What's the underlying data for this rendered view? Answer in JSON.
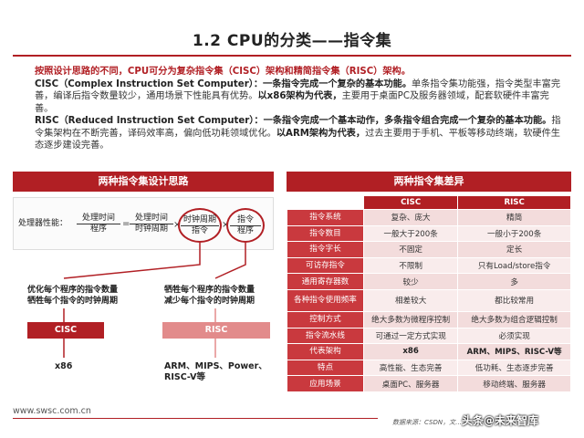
{
  "title": "1.2 CPU的分类——指令集",
  "intro": {
    "line1": "按照设计思路的不同，CPU可分为复杂指令集（CISC）架构和精简指令集（RISC）架构。",
    "cisc_term": "CISC（Complex Instruction Set Computer）：",
    "cisc_def": "一条指令完成一个复杂的基本功能。",
    "cisc_body": "单条指令集功能强，指令类型丰富完善，编译后指令数量较少，通用场景下性能具有优势。",
    "cisc_rep": "以x86架构为代表，",
    "cisc_tail": "主要用于桌面PC及服务器领域，配套软硬件丰富完善。",
    "risc_term": "RISC（Reduced Instruction Set Computer）：",
    "risc_def": "一条指令完成一个基本动作，多条指令组合完成一个复杂的基本功能。",
    "risc_body": "指令集架构在不断完善，译码效率高，偏向低功耗领域优化。",
    "risc_rep": "以ARM架构为代表，",
    "risc_tail": "过去主要用于手机、平板等移动终端，软硬件生态逐步建设完善。"
  },
  "left_panel": {
    "header": "两种指令集设计思路",
    "formula": {
      "lhs": "处理器性能：",
      "frac1_num": "处理时间",
      "frac1_den": "程序",
      "eq": "=",
      "frac2_num": "处理时间",
      "frac2_den": "时钟周期",
      "times1": "×",
      "frac3_num": "时钟周期",
      "frac3_den": "指令",
      "times2": "×",
      "frac4_num": "指令",
      "frac4_den": "程序"
    },
    "cisc_note_1": "优化每个程序的指令数量",
    "cisc_note_2": "牺牲每个指令的时钟周期",
    "risc_note_1": "牺牲每个程序的指令数量",
    "risc_note_2": "减少每个指令的时钟周期",
    "cisc_tag": "CISC",
    "risc_tag": "RISC",
    "cisc_ex": "x86",
    "risc_ex_1": "ARM、MIPS、Power、",
    "risc_ex_2": "RISC-V等"
  },
  "right_panel": {
    "header": "两种指令集差异",
    "col_cisc": "CISC",
    "col_risc": "RISC",
    "rows": [
      {
        "label": "指令系统",
        "cisc": "复杂、庞大",
        "risc": "精简"
      },
      {
        "label": "指令数目",
        "cisc": "一般大于200条",
        "risc": "一般小于200条"
      },
      {
        "label": "指令字长",
        "cisc": "不固定",
        "risc": "定长"
      },
      {
        "label": "可访存指令",
        "cisc": "不限制",
        "risc": "只有Load/store指令"
      },
      {
        "label": "通用寄存器数",
        "cisc": "较少",
        "risc": "多"
      },
      {
        "label": "各种指令使用频率",
        "cisc": "相差较大",
        "risc": "都比较常用"
      },
      {
        "label": "控制方式",
        "cisc": "绝大多数为微程序控制",
        "risc": "绝大多数为组合逻辑控制"
      },
      {
        "label": "指令流水线",
        "cisc": "可通过一定方式实现",
        "risc": "必须实现"
      },
      {
        "label": "代表架构",
        "cisc": "x86",
        "risc": "ARM、MIPS、RISC-V等"
      },
      {
        "label": "特点",
        "cisc": "高性能、生态完善",
        "risc": "低功耗、生态逐步完善"
      },
      {
        "label": "应用场景",
        "cisc": "桌面PC、服务器",
        "risc": "移动终端、服务器"
      }
    ]
  },
  "footer": {
    "url": "www.swsc.com.cn",
    "source": "数据来源：CSDN，文…",
    "watermark": "头条@未来智库"
  },
  "colors": {
    "accent": "#b11f24",
    "row_label": "#c9393e",
    "cell": "#f3dcdc"
  }
}
